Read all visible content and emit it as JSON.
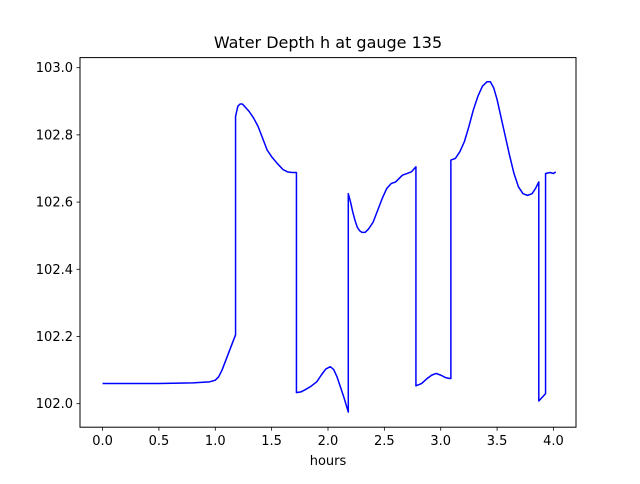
{
  "chart_data": {
    "type": "line",
    "title": "Water Depth h at gauge 135",
    "xlabel": "hours",
    "ylabel": "",
    "xlim": [
      -0.2,
      4.2
    ],
    "ylim": [
      101.93,
      103.03
    ],
    "xticks": [
      0.0,
      0.5,
      1.0,
      1.5,
      2.0,
      2.5,
      3.0,
      3.5,
      4.0
    ],
    "xtick_labels": [
      "0.0",
      "0.5",
      "1.0",
      "1.5",
      "2.0",
      "2.5",
      "3.0",
      "3.5",
      "4.0"
    ],
    "yticks": [
      102.0,
      102.2,
      102.4,
      102.6,
      102.8,
      103.0
    ],
    "ytick_labels": [
      "102.0",
      "102.2",
      "102.4",
      "102.6",
      "102.8",
      "103.0"
    ],
    "grid": false,
    "series": [
      {
        "name": "",
        "color": "#0000ff",
        "x": [
          0.0,
          0.5,
          0.8,
          0.95,
          1.0,
          1.03,
          1.06,
          1.1,
          1.14,
          1.18,
          1.18,
          1.2,
          1.22,
          1.24,
          1.26,
          1.3,
          1.34,
          1.38,
          1.42,
          1.46,
          1.5,
          1.55,
          1.6,
          1.64,
          1.68,
          1.72,
          1.72,
          1.76,
          1.8,
          1.85,
          1.9,
          1.94,
          1.98,
          2.02,
          2.05,
          2.08,
          2.11,
          2.14,
          2.18,
          2.18,
          2.2,
          2.22,
          2.24,
          2.26,
          2.28,
          2.3,
          2.33,
          2.36,
          2.4,
          2.44,
          2.48,
          2.52,
          2.56,
          2.6,
          2.63,
          2.66,
          2.7,
          2.74,
          2.78,
          2.78,
          2.83,
          2.88,
          2.92,
          2.96,
          3.0,
          3.04,
          3.08,
          3.09,
          3.09,
          3.13,
          3.17,
          3.21,
          3.25,
          3.29,
          3.33,
          3.37,
          3.41,
          3.44,
          3.47,
          3.5,
          3.53,
          3.57,
          3.61,
          3.65,
          3.69,
          3.73,
          3.77,
          3.81,
          3.84,
          3.87,
          3.87,
          3.93,
          3.93,
          3.97,
          4.0,
          4.02
        ],
        "y": [
          102.06,
          102.06,
          102.062,
          102.065,
          102.07,
          102.08,
          102.1,
          102.135,
          102.17,
          102.205,
          102.855,
          102.885,
          102.892,
          102.892,
          102.885,
          102.87,
          102.85,
          102.825,
          102.79,
          102.755,
          102.735,
          102.715,
          102.697,
          102.69,
          102.688,
          102.688,
          102.033,
          102.035,
          102.042,
          102.052,
          102.065,
          102.085,
          102.103,
          102.11,
          102.102,
          102.08,
          102.05,
          102.02,
          101.975,
          102.625,
          102.6,
          102.57,
          102.545,
          102.525,
          102.515,
          102.51,
          102.51,
          102.52,
          102.54,
          102.575,
          102.61,
          102.64,
          102.655,
          102.66,
          102.67,
          102.68,
          102.685,
          102.69,
          102.705,
          102.053,
          102.06,
          102.075,
          102.085,
          102.09,
          102.085,
          102.078,
          102.075,
          102.075,
          102.725,
          102.73,
          102.75,
          102.78,
          102.825,
          102.875,
          102.915,
          102.945,
          102.958,
          102.958,
          102.94,
          102.905,
          102.86,
          102.8,
          102.74,
          102.685,
          102.645,
          102.625,
          102.62,
          102.625,
          102.64,
          102.66,
          102.008,
          102.03,
          102.685,
          102.688,
          102.685,
          102.69
        ]
      }
    ]
  }
}
